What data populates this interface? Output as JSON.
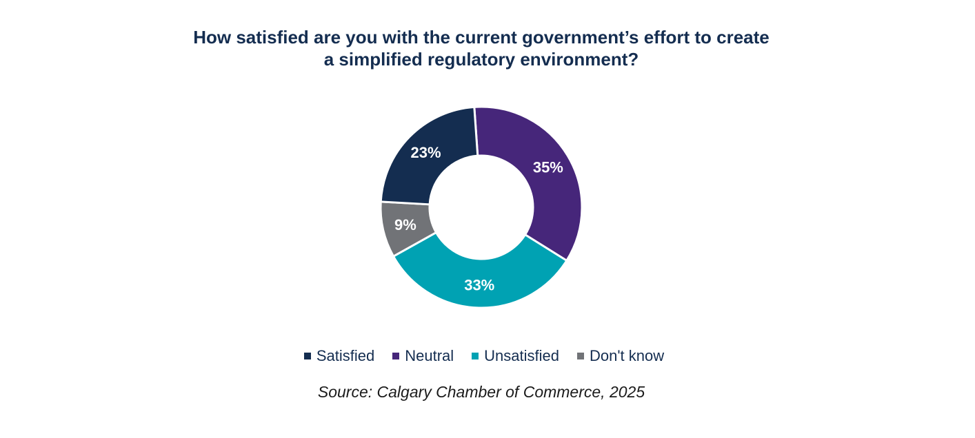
{
  "chart_data": {
    "type": "pie",
    "variant": "donut",
    "title_lines": [
      "How satisfied are you with the current government’s effort to create",
      "a simplified regulatory environment?"
    ],
    "categories": [
      "Satisfied",
      "Neutral",
      "Unsatisfied",
      "Don't know"
    ],
    "values": [
      23,
      35,
      33,
      9
    ],
    "labels": [
      "23%",
      "35%",
      "33%",
      "9%"
    ],
    "colors": [
      "#142d50",
      "#46267a",
      "#00a2b3",
      "#717377"
    ],
    "legend_position": "bottom"
  },
  "source": "Source: Calgary Chamber of Commerce, 2025"
}
